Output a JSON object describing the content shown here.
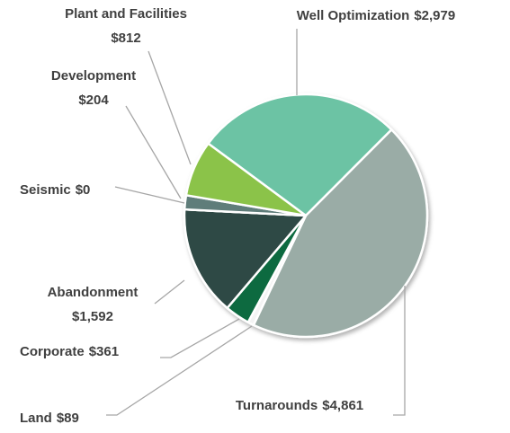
{
  "chart_data": {
    "type": "pie",
    "categories": [
      "Well Optimization",
      "Turnarounds",
      "Land",
      "Corporate",
      "Abandonment",
      "Seismic",
      "Development",
      "Plant and Facilities"
    ],
    "values": [
      2979,
      4861,
      89,
      361,
      1592,
      0,
      204,
      812
    ],
    "value_labels": [
      "$2,979",
      "$4,861",
      "$89",
      "$361",
      "$1,592",
      "$0",
      "$204",
      "$812"
    ],
    "colors": [
      "#6cc3a4",
      "#9aaca6",
      "#f4f4f4",
      "#0b6b3f",
      "#2f4a44",
      "#7f9490",
      "#5e7d7a",
      "#8bc34a"
    ]
  }
}
